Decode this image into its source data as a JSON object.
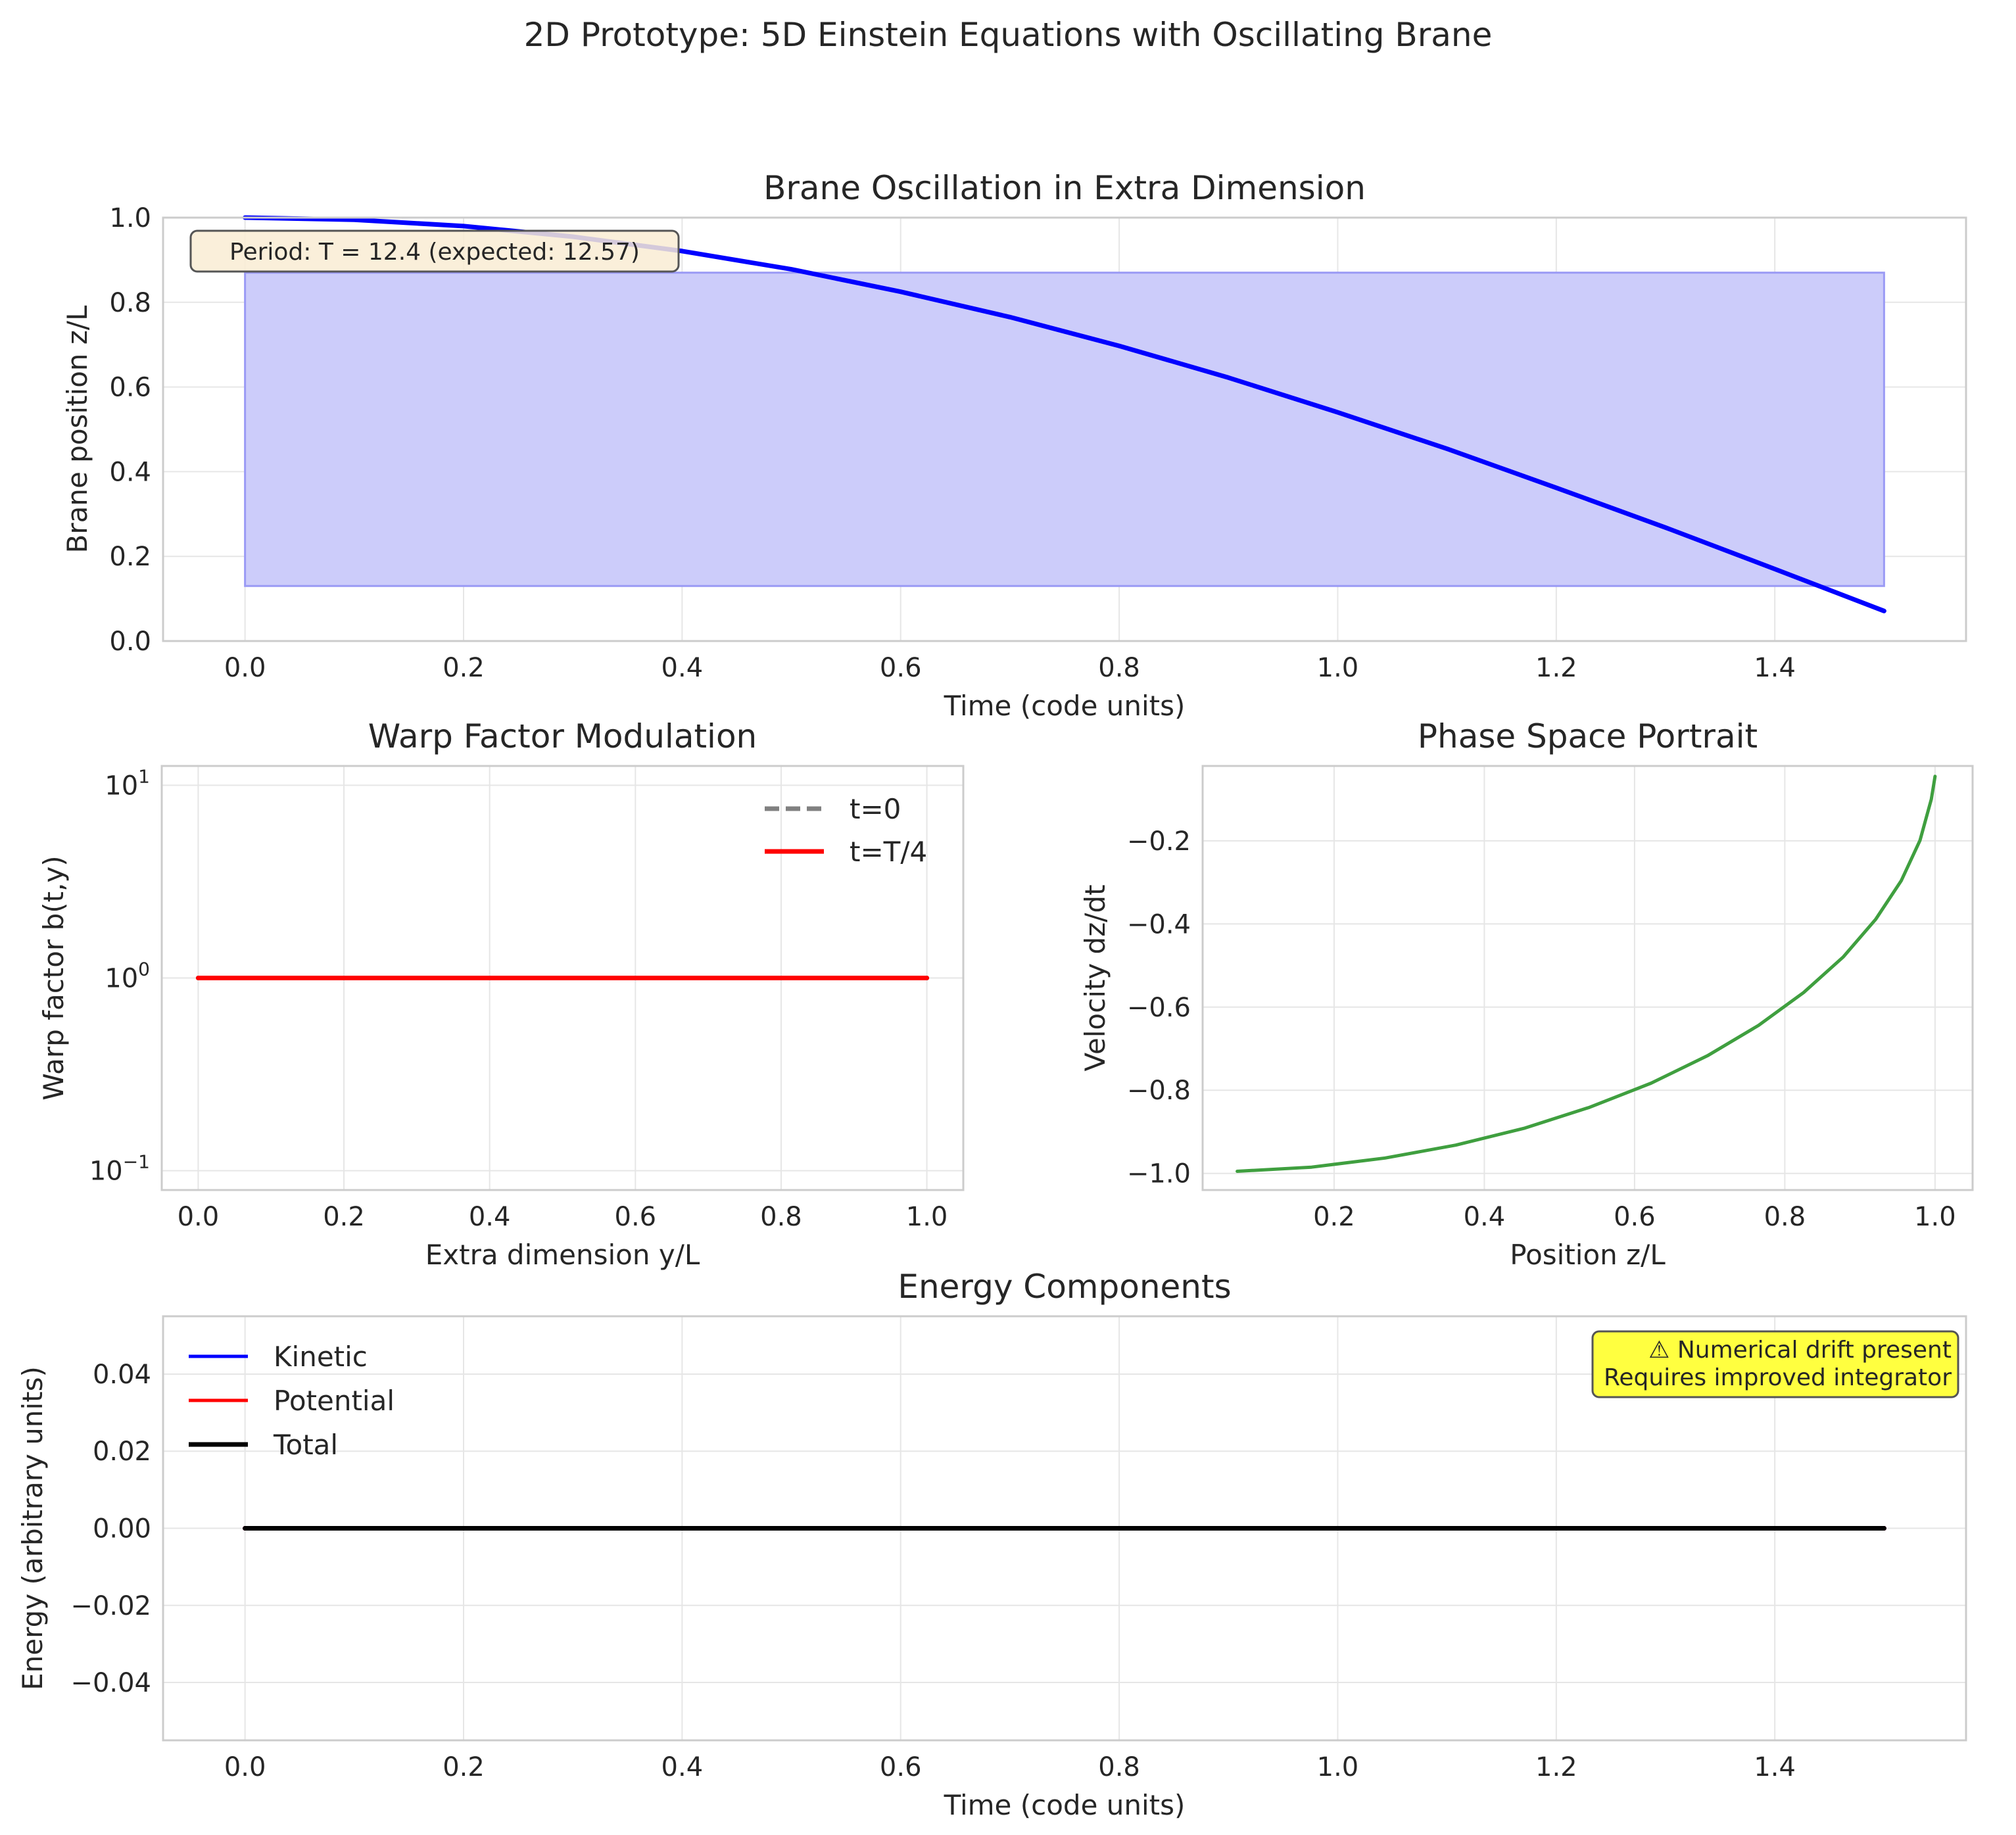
{
  "figure": {
    "title": "2D Prototype: 5D Einstein Equations with Oscillating Brane"
  },
  "chart_data": [
    {
      "type": "line",
      "title": "Brane Oscillation in Extra Dimension",
      "xlabel": "Time (code units)",
      "ylabel": "Brane position z/L",
      "xlim": [
        -0.075,
        1.575
      ],
      "ylim": [
        0.0,
        1.0
      ],
      "xticks": [
        0.0,
        0.2,
        0.4,
        0.6,
        0.8,
        1.0,
        1.2,
        1.4
      ],
      "yticks": [
        0.0,
        0.2,
        0.4,
        0.6,
        0.8,
        1.0
      ],
      "xtick_labels": [
        "0.0",
        "0.2",
        "0.4",
        "0.6",
        "0.8",
        "1.0",
        "1.2",
        "1.4"
      ],
      "ytick_labels": [
        "0.0",
        "0.2",
        "0.4",
        "0.6",
        "0.8",
        "1.0"
      ],
      "grid": true,
      "band": {
        "x": [
          0.0,
          1.5
        ],
        "y": [
          0.13,
          0.87
        ],
        "color": "#ccccfa"
      },
      "series": [
        {
          "color": "#0000ff",
          "x": [
            0.0,
            0.1,
            0.2,
            0.3,
            0.4,
            0.5,
            0.6,
            0.7,
            0.8,
            0.9,
            1.0,
            1.1,
            1.2,
            1.3,
            1.4,
            1.5
          ],
          "y": [
            1.0,
            0.995,
            0.98,
            0.955,
            0.921,
            0.878,
            0.825,
            0.765,
            0.697,
            0.622,
            0.54,
            0.454,
            0.362,
            0.268,
            0.17,
            0.071
          ]
        }
      ],
      "annotation": "Period: T = 12.4 (expected: 12.57)",
      "annotation_color": "#f9ecd4"
    },
    {
      "type": "line",
      "title": "Warp Factor Modulation",
      "xlabel": "Extra dimension y/L",
      "ylabel": "Warp factor b(t,y)",
      "xlim": [
        -0.05,
        1.05
      ],
      "ylim_log10": [
        -1.1,
        1.1
      ],
      "yscale": "log",
      "xticks": [
        0.0,
        0.2,
        0.4,
        0.6,
        0.8,
        1.0
      ],
      "xtick_labels": [
        "0.0",
        "0.2",
        "0.4",
        "0.6",
        "0.8",
        "1.0"
      ],
      "ytick_labels": [
        {
          "base": "10",
          "exp": "1"
        },
        {
          "base": "10",
          "exp": "0"
        },
        {
          "base": "10",
          "exp": "−1"
        }
      ],
      "grid": true,
      "legend_position": "upper right",
      "series": [
        {
          "name": "t=0",
          "color": "#808080",
          "dash": true,
          "x": [
            0.0,
            1.0
          ],
          "y": [
            1.0,
            1.0
          ]
        },
        {
          "name": "t=T/4",
          "color": "#ff0000",
          "dash": false,
          "x": [
            0.0,
            1.0
          ],
          "y": [
            1.0,
            1.0
          ]
        }
      ]
    },
    {
      "type": "line",
      "title": "Phase Space Portrait",
      "xlabel": "Position z/L",
      "ylabel": "Velocity dz/dt",
      "xlim": [
        0.025,
        1.05
      ],
      "ylim": [
        -1.04,
        -0.02
      ],
      "xticks": [
        0.2,
        0.4,
        0.6,
        0.8,
        1.0
      ],
      "yticks": [
        -1.0,
        -0.8,
        -0.6,
        -0.4,
        -0.2
      ],
      "xtick_labels": [
        "0.2",
        "0.4",
        "0.6",
        "0.8",
        "1.0"
      ],
      "ytick_labels": [
        "−1.0",
        "−0.8",
        "−0.6",
        "−0.4",
        "−0.2"
      ],
      "grid": true,
      "series": [
        {
          "color": "#3f9f3f",
          "x": [
            0.071,
            0.17,
            0.268,
            0.362,
            0.454,
            0.54,
            0.622,
            0.697,
            0.765,
            0.825,
            0.878,
            0.921,
            0.955,
            0.98,
            0.995,
            1.0
          ],
          "y": [
            -0.995,
            -0.985,
            -0.963,
            -0.932,
            -0.891,
            -0.841,
            -0.783,
            -0.717,
            -0.644,
            -0.565,
            -0.479,
            -0.389,
            -0.296,
            -0.199,
            -0.1,
            -0.045
          ]
        }
      ]
    },
    {
      "type": "line",
      "title": "Energy Components",
      "xlabel": "Time (code units)",
      "ylabel": "Energy (arbitrary units)",
      "xlim": [
        -0.075,
        1.575
      ],
      "ylim": [
        -0.055,
        0.055
      ],
      "xticks": [
        0.0,
        0.2,
        0.4,
        0.6,
        0.8,
        1.0,
        1.2,
        1.4
      ],
      "yticks": [
        -0.04,
        -0.02,
        0.0,
        0.02,
        0.04
      ],
      "xtick_labels": [
        "0.0",
        "0.2",
        "0.4",
        "0.6",
        "0.8",
        "1.0",
        "1.2",
        "1.4"
      ],
      "ytick_labels": [
        "−0.04",
        "−0.02",
        "0.00",
        "0.02",
        "0.04"
      ],
      "grid": true,
      "legend_position": "upper left",
      "series": [
        {
          "name": "Kinetic",
          "color": "#0000ff",
          "x": [
            0.0,
            1.5
          ],
          "y": [
            0.0,
            0.0
          ]
        },
        {
          "name": "Potential",
          "color": "#ff0000",
          "x": [
            0.0,
            1.5
          ],
          "y": [
            0.0,
            0.0
          ]
        },
        {
          "name": "Total",
          "color": "#000000",
          "x": [
            0.0,
            1.5
          ],
          "y": [
            0.0,
            0.0
          ]
        }
      ],
      "annotation_lines": [
        "⚠ Numerical drift present",
        "Requires improved integrator"
      ],
      "annotation_color": "#ffff40"
    }
  ]
}
